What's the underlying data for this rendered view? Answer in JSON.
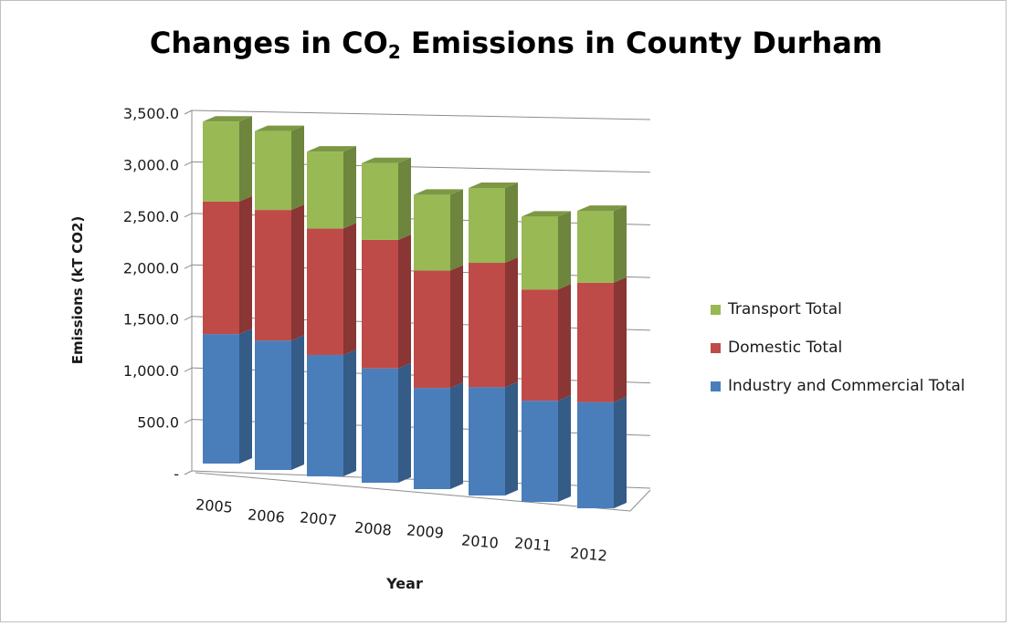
{
  "chart_data": {
    "type": "bar",
    "stacked": true,
    "three_d": true,
    "title_main": "Changes in CO",
    "title_sub": "2",
    "title_rest": " Emissions in County Durham",
    "xlabel": "Year",
    "ylabel": "Emissions (kT CO2)",
    "categories": [
      "2005",
      "2006",
      "2007",
      "2008",
      "2009",
      "2010",
      "2011",
      "2012"
    ],
    "ylim": [
      0,
      3500
    ],
    "yticks": [
      {
        "value": 0,
        "label": "-"
      },
      {
        "value": 500,
        "label": "500.0"
      },
      {
        "value": 1000,
        "label": "1,000.0"
      },
      {
        "value": 1500,
        "label": "1,500.0"
      },
      {
        "value": 2000,
        "label": "2,000.0"
      },
      {
        "value": 2500,
        "label": "2,500.0"
      },
      {
        "value": 3000,
        "label": "3,000.0"
      },
      {
        "value": 3500,
        "label": "3,500.0"
      }
    ],
    "series": [
      {
        "name": "Industry and Commercial Total",
        "color": "#4a7ebb",
        "values": [
          1280,
          1280,
          1200,
          1130,
          1000,
          1070,
          1000,
          1050
        ]
      },
      {
        "name": "Domestic Total",
        "color": "#be4b48",
        "values": [
          1310,
          1290,
          1250,
          1270,
          1160,
          1230,
          1100,
          1180
        ]
      },
      {
        "name": "Transport Total",
        "color": "#98b954",
        "values": [
          790,
          780,
          760,
          760,
          750,
          740,
          720,
          710
        ]
      }
    ],
    "legend_position": "right",
    "grid": true
  }
}
